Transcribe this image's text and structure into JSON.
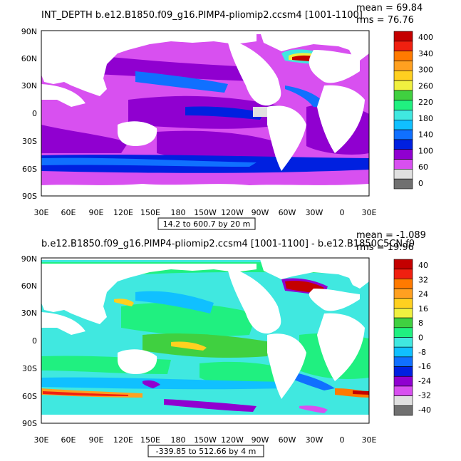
{
  "panel1": {
    "title": "INT_DEPTH  b.e12.B1850.f09_g16.PIMP4-pliomip2.ccsm4  [1001-1100]",
    "mean_text": "mean = 69.84",
    "rms_text": "rms = 76.76",
    "range_text": "14.2 to 600.7 by 20 m",
    "lat_labels": [
      "90N",
      "60N",
      "30N",
      "0",
      "30S",
      "60S",
      "90S"
    ],
    "lon_labels": [
      "30E",
      "60E",
      "90E",
      "120E",
      "150E",
      "180",
      "150W",
      "120W",
      "90W",
      "60W",
      "30W",
      "0",
      "30E"
    ],
    "colorbar": {
      "labels": [
        "400",
        "340",
        "300",
        "260",
        "220",
        "180",
        "140",
        "100",
        "60",
        "0"
      ],
      "colors": [
        "#c40000",
        "#f02010",
        "#ff7a00",
        "#ffa020",
        "#ffd020",
        "#f0f040",
        "#40d040",
        "#20f080",
        "#40e8e0",
        "#10c0ff",
        "#1070ff",
        "#0020e0",
        "#9000d0",
        "#d850f0",
        "#e0e0e0",
        "#707070"
      ]
    }
  },
  "panel2": {
    "title": "b.e12.B1850.f09_g16.PIMP4-pliomip2.ccsm4  [1001-1100]  -  b.e12.B1850C5CN.f0",
    "mean_text": "mean = -1.089",
    "rms_text": "rms = 19.96",
    "range_text": "-339.85 to 512.66 by 4 m",
    "lat_labels": [
      "90N",
      "60N",
      "30N",
      "0",
      "30S",
      "60S",
      "90S"
    ],
    "lon_labels": [
      "30E",
      "60E",
      "90E",
      "120E",
      "150E",
      "180",
      "150W",
      "120W",
      "90W",
      "60W",
      "30W",
      "0",
      "30E"
    ],
    "colorbar": {
      "labels": [
        "40",
        "32",
        "24",
        "16",
        "8",
        "0",
        "-8",
        "-16",
        "-24",
        "-32",
        "-40"
      ],
      "colors": [
        "#c40000",
        "#f02010",
        "#ff7a00",
        "#ffa020",
        "#ffd020",
        "#f0f040",
        "#40d040",
        "#20f080",
        "#40e8e0",
        "#10c0ff",
        "#1070ff",
        "#0020e0",
        "#9000d0",
        "#d850f0",
        "#e0e0e0",
        "#707070"
      ]
    }
  }
}
